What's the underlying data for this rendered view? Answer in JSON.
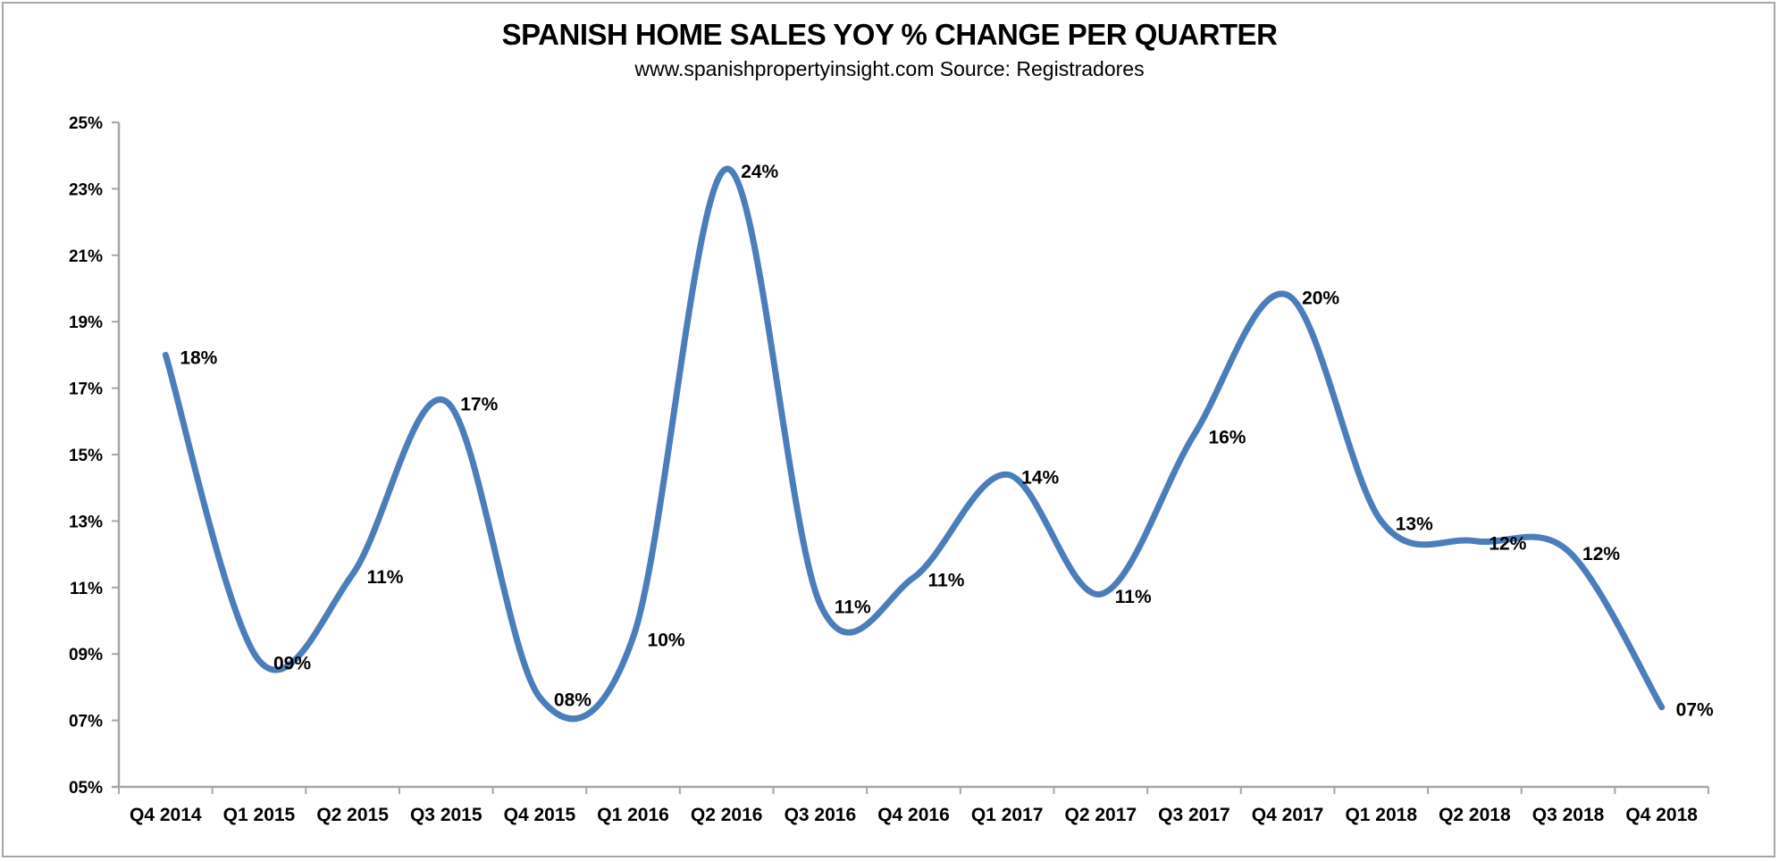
{
  "chart_data": {
    "type": "line",
    "title": "SPANISH HOME SALES YOY % CHANGE PER QUARTER",
    "subtitle": "www.spanishpropertyinsight.com Source: Registradores",
    "xlabel": "",
    "ylabel": "",
    "ylim": [
      5,
      25
    ],
    "yticks": [
      5,
      7,
      9,
      11,
      13,
      15,
      17,
      19,
      21,
      23,
      25
    ],
    "ytick_labels": [
      "05%",
      "07%",
      "09%",
      "11%",
      "13%",
      "15%",
      "17%",
      "19%",
      "21%",
      "23%",
      "25%"
    ],
    "grid": false,
    "legend": "none",
    "smooth": true,
    "categories": [
      "Q4 2014",
      "Q1 2015",
      "Q2 2015",
      "Q3 2015",
      "Q4 2015",
      "Q1 2016",
      "Q2 2016",
      "Q3 2016",
      "Q4 2016",
      "Q1 2017",
      "Q2 2017",
      "Q3 2017",
      "Q4 2017",
      "Q1 2018",
      "Q2 2018",
      "Q3 2018",
      "Q4 2018"
    ],
    "series": [
      {
        "name": "YoY % change",
        "color": "#4a7ebb",
        "values": [
          18.0,
          8.8,
          11.4,
          16.6,
          7.7,
          9.5,
          23.6,
          10.5,
          11.3,
          14.4,
          10.8,
          15.6,
          19.8,
          13.0,
          12.4,
          12.1,
          7.4
        ],
        "data_labels": [
          "18%",
          "09%",
          "11%",
          "17%",
          "08%",
          "10%",
          "24%",
          "11%",
          "11%",
          "14%",
          "11%",
          "16%",
          "20%",
          "13%",
          "12%",
          "12%",
          "07%"
        ]
      }
    ]
  }
}
